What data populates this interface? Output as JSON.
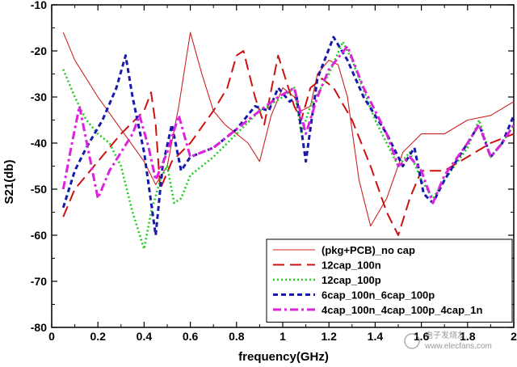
{
  "chart_data": {
    "type": "line",
    "xlabel": "frequency(GHz)",
    "ylabel": "S21(db)",
    "xlim": [
      0,
      2
    ],
    "ylim": [
      -80,
      -10
    ],
    "x_ticks": [
      "0",
      "0.2",
      "0.4",
      "0.6",
      "0.8",
      "1",
      "1.2",
      "1.4",
      "1.6",
      "1.8",
      "2"
    ],
    "y_ticks": [
      "-10",
      "-20",
      "-30",
      "-40",
      "-50",
      "-60",
      "-70",
      "-80"
    ],
    "legend_position": "bottom-right",
    "series": [
      {
        "name": "(pkg+PCB)_no cap",
        "color": "#cc2222",
        "style": "solid",
        "points": [
          [
            0.05,
            -16
          ],
          [
            0.1,
            -22
          ],
          [
            0.2,
            -30
          ],
          [
            0.3,
            -37
          ],
          [
            0.4,
            -44
          ],
          [
            0.45,
            -49
          ],
          [
            0.5,
            -45
          ],
          [
            0.55,
            -32
          ],
          [
            0.6,
            -16
          ],
          [
            0.65,
            -25
          ],
          [
            0.7,
            -33
          ],
          [
            0.75,
            -36
          ],
          [
            0.8,
            -38
          ],
          [
            0.85,
            -40
          ],
          [
            0.9,
            -44
          ],
          [
            0.95,
            -34
          ],
          [
            1.0,
            -28
          ],
          [
            1.05,
            -30
          ],
          [
            1.08,
            -33
          ],
          [
            1.12,
            -32
          ],
          [
            1.15,
            -25
          ],
          [
            1.2,
            -22
          ],
          [
            1.24,
            -23
          ],
          [
            1.28,
            -30
          ],
          [
            1.33,
            -48
          ],
          [
            1.38,
            -58
          ],
          [
            1.45,
            -52
          ],
          [
            1.52,
            -42
          ],
          [
            1.6,
            -38
          ],
          [
            1.7,
            -38
          ],
          [
            1.8,
            -35
          ],
          [
            1.9,
            -34
          ],
          [
            2.0,
            -31
          ]
        ]
      },
      {
        "name": "12cap_100n",
        "color": "#cc1111",
        "style": "longdash",
        "points": [
          [
            0.05,
            -56
          ],
          [
            0.1,
            -50
          ],
          [
            0.2,
            -44
          ],
          [
            0.3,
            -38
          ],
          [
            0.4,
            -33
          ],
          [
            0.43,
            -29
          ],
          [
            0.45,
            -36
          ],
          [
            0.47,
            -50
          ],
          [
            0.52,
            -44
          ],
          [
            0.6,
            -40
          ],
          [
            0.7,
            -33
          ],
          [
            0.76,
            -28
          ],
          [
            0.8,
            -21
          ],
          [
            0.83,
            -20
          ],
          [
            0.88,
            -30
          ],
          [
            0.92,
            -36
          ],
          [
            0.96,
            -26
          ],
          [
            0.98,
            -21
          ],
          [
            1.05,
            -32
          ],
          [
            1.08,
            -35
          ],
          [
            1.12,
            -28
          ],
          [
            1.17,
            -26
          ],
          [
            1.22,
            -28
          ],
          [
            1.3,
            -35
          ],
          [
            1.38,
            -45
          ],
          [
            1.45,
            -55
          ],
          [
            1.5,
            -60
          ],
          [
            1.55,
            -52
          ],
          [
            1.6,
            -46
          ],
          [
            1.7,
            -46
          ],
          [
            1.8,
            -43
          ],
          [
            1.9,
            -40
          ],
          [
            2.0,
            -38
          ]
        ]
      },
      {
        "name": "12cap_100p",
        "color": "#22cc22",
        "style": "dotted",
        "points": [
          [
            0.05,
            -24
          ],
          [
            0.1,
            -30
          ],
          [
            0.15,
            -35
          ],
          [
            0.2,
            -38
          ],
          [
            0.25,
            -40
          ],
          [
            0.3,
            -45
          ],
          [
            0.35,
            -55
          ],
          [
            0.4,
            -63
          ],
          [
            0.43,
            -55
          ],
          [
            0.47,
            -48
          ],
          [
            0.5,
            -45
          ],
          [
            0.53,
            -53
          ],
          [
            0.56,
            -52
          ],
          [
            0.6,
            -47
          ],
          [
            0.7,
            -43
          ],
          [
            0.8,
            -38
          ],
          [
            0.9,
            -33
          ],
          [
            1.0,
            -30
          ],
          [
            1.05,
            -28
          ],
          [
            1.08,
            -38
          ],
          [
            1.12,
            -32
          ],
          [
            1.2,
            -25
          ],
          [
            1.26,
            -18
          ],
          [
            1.3,
            -22
          ],
          [
            1.4,
            -35
          ],
          [
            1.5,
            -45
          ],
          [
            1.55,
            -42
          ],
          [
            1.6,
            -48
          ],
          [
            1.65,
            -52
          ],
          [
            1.7,
            -48
          ],
          [
            1.8,
            -41
          ],
          [
            1.85,
            -35
          ],
          [
            1.9,
            -43
          ],
          [
            1.95,
            -40
          ],
          [
            2.0,
            -36
          ]
        ]
      },
      {
        "name": "6cap_100n_6cap_100p",
        "color": "#1a1aaa",
        "style": "dashed",
        "points": [
          [
            0.05,
            -54
          ],
          [
            0.1,
            -46
          ],
          [
            0.15,
            -41
          ],
          [
            0.22,
            -35
          ],
          [
            0.28,
            -28
          ],
          [
            0.32,
            -21
          ],
          [
            0.35,
            -30
          ],
          [
            0.4,
            -42
          ],
          [
            0.45,
            -60
          ],
          [
            0.48,
            -45
          ],
          [
            0.52,
            -36
          ],
          [
            0.56,
            -46
          ],
          [
            0.6,
            -43
          ],
          [
            0.7,
            -41
          ],
          [
            0.8,
            -37
          ],
          [
            0.88,
            -32
          ],
          [
            0.94,
            -33
          ],
          [
            0.98,
            -28
          ],
          [
            1.03,
            -31
          ],
          [
            1.06,
            -30
          ],
          [
            1.1,
            -44
          ],
          [
            1.15,
            -26
          ],
          [
            1.22,
            -17
          ],
          [
            1.28,
            -22
          ],
          [
            1.35,
            -30
          ],
          [
            1.45,
            -38
          ],
          [
            1.52,
            -45
          ],
          [
            1.57,
            -41
          ],
          [
            1.61,
            -51
          ],
          [
            1.65,
            -53
          ],
          [
            1.7,
            -48
          ],
          [
            1.8,
            -40
          ],
          [
            1.85,
            -36
          ],
          [
            1.9,
            -43
          ],
          [
            1.95,
            -40
          ],
          [
            2.0,
            -34
          ]
        ]
      },
      {
        "name": "4cap_100n_4cap_100p_4cap_1n",
        "color": "#dd22dd",
        "style": "dashdot",
        "points": [
          [
            0.05,
            -50
          ],
          [
            0.08,
            -42
          ],
          [
            0.12,
            -32
          ],
          [
            0.16,
            -42
          ],
          [
            0.2,
            -52
          ],
          [
            0.25,
            -46
          ],
          [
            0.3,
            -42
          ],
          [
            0.35,
            -38
          ],
          [
            0.38,
            -34
          ],
          [
            0.42,
            -41
          ],
          [
            0.45,
            -48
          ],
          [
            0.5,
            -42
          ],
          [
            0.55,
            -34
          ],
          [
            0.6,
            -43
          ],
          [
            0.7,
            -41
          ],
          [
            0.8,
            -37
          ],
          [
            0.9,
            -33
          ],
          [
            0.98,
            -30
          ],
          [
            1.05,
            -28
          ],
          [
            1.1,
            -38
          ],
          [
            1.15,
            -30
          ],
          [
            1.2,
            -24
          ],
          [
            1.28,
            -19
          ],
          [
            1.35,
            -28
          ],
          [
            1.45,
            -38
          ],
          [
            1.5,
            -45
          ],
          [
            1.55,
            -43
          ],
          [
            1.6,
            -46
          ],
          [
            1.65,
            -53
          ],
          [
            1.7,
            -47
          ],
          [
            1.8,
            -40
          ],
          [
            1.85,
            -36
          ],
          [
            1.9,
            -43
          ],
          [
            1.95,
            -40
          ],
          [
            2.0,
            -36
          ]
        ]
      }
    ]
  },
  "watermark": {
    "text": "www.elecfans.com",
    "logo_text": "电子发烧友"
  }
}
